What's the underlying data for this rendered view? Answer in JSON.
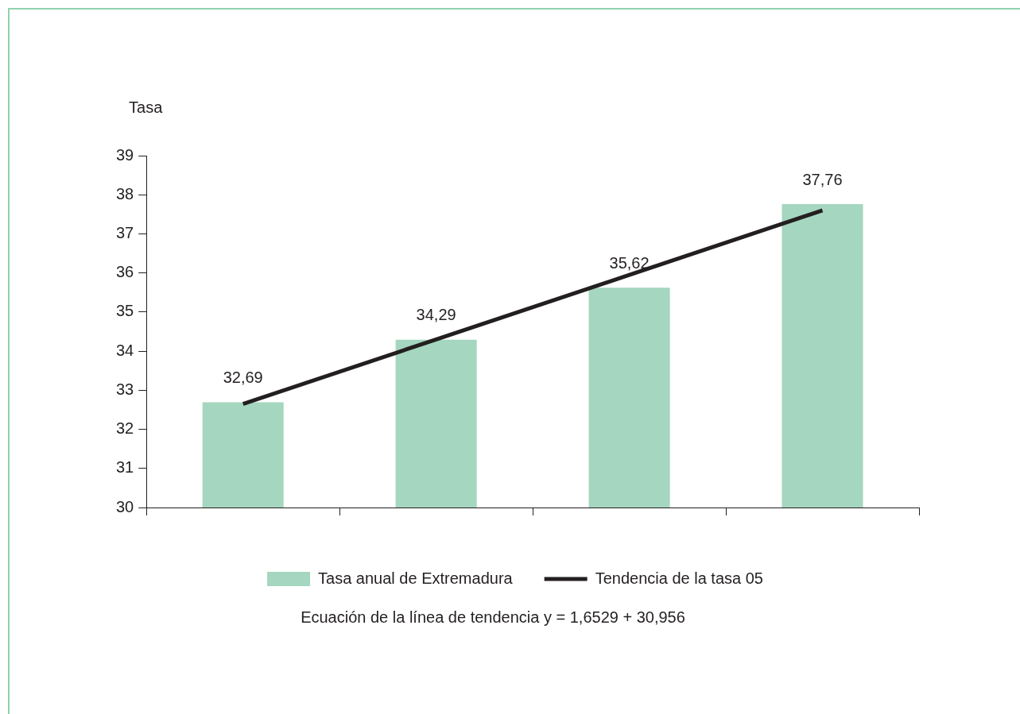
{
  "chart_data": {
    "type": "bar",
    "ylabel": "Tasa",
    "categories": [
      null,
      null,
      null,
      null
    ],
    "series": [
      {
        "name": "Tasa anual de Extremadura",
        "color": "#a5d6bf",
        "values": [
          32.69,
          34.29,
          35.62,
          37.76
        ],
        "value_labels": [
          "32,69",
          "34,29",
          "35,62",
          "37,76"
        ]
      },
      {
        "name": "Tendencia de la tasa 05",
        "type": "line",
        "color": "#231f20",
        "values": [
          32.65,
          34.3,
          35.95,
          37.6
        ]
      }
    ],
    "ylim": [
      30,
      39
    ],
    "yticks": [
      30,
      31,
      32,
      33,
      34,
      35,
      36,
      37,
      38,
      39
    ],
    "grid": false,
    "legend": "bottom",
    "marker": "none",
    "line_style": "solid",
    "annotations": [
      "Ecuación de la línea de tendencia y = 1,6529  + 30,956"
    ]
  }
}
